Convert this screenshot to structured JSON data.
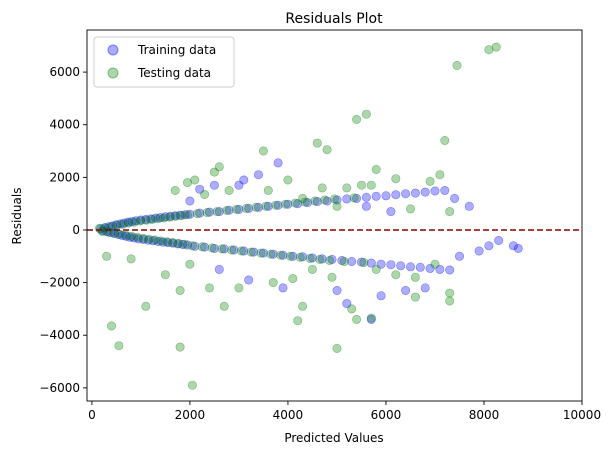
{
  "chart_data": {
    "type": "scatter",
    "title": "Residuals Plot",
    "xlabel": "Predicted Values",
    "ylabel": "Residuals",
    "xlim": [
      -100,
      10000
    ],
    "ylim": [
      -6500,
      7600
    ],
    "xticks": [
      0,
      2000,
      4000,
      6000,
      8000,
      10000
    ],
    "yticks": [
      -6000,
      -4000,
      -2000,
      0,
      2000,
      4000,
      6000
    ],
    "xtick_labels": [
      "0",
      "2000",
      "4000",
      "6000",
      "8000",
      "10000"
    ],
    "ytick_labels": [
      "−6000",
      "−4000",
      "−2000",
      "0",
      "2000",
      "4000",
      "6000"
    ],
    "grid": false,
    "legend_position": "upper-left",
    "reference_line": {
      "y": 0,
      "style": "dashed",
      "color": "#8b0000"
    },
    "series": [
      {
        "name": "Training data",
        "color": "#0000ff",
        "points": [
          [
            180,
            50
          ],
          [
            220,
            -40
          ],
          [
            260,
            80
          ],
          [
            300,
            -60
          ],
          [
            340,
            120
          ],
          [
            380,
            -100
          ],
          [
            420,
            150
          ],
          [
            460,
            -130
          ],
          [
            500,
            200
          ],
          [
            540,
            -170
          ],
          [
            580,
            230
          ],
          [
            620,
            -210
          ],
          [
            660,
            260
          ],
          [
            700,
            -240
          ],
          [
            740,
            300
          ],
          [
            780,
            -280
          ],
          [
            820,
            320
          ],
          [
            860,
            -300
          ],
          [
            900,
            350
          ],
          [
            950,
            -340
          ],
          [
            1000,
            380
          ],
          [
            1050,
            -360
          ],
          [
            1100,
            400
          ],
          [
            1150,
            -390
          ],
          [
            1200,
            420
          ],
          [
            1250,
            -410
          ],
          [
            1300,
            450
          ],
          [
            1350,
            -440
          ],
          [
            1400,
            470
          ],
          [
            1450,
            -460
          ],
          [
            1500,
            500
          ],
          [
            1550,
            -480
          ],
          [
            1600,
            520
          ],
          [
            1650,
            -500
          ],
          [
            1700,
            540
          ],
          [
            1750,
            -530
          ],
          [
            1800,
            560
          ],
          [
            1850,
            -550
          ],
          [
            1900,
            580
          ],
          [
            1950,
            -570
          ],
          [
            2000,
            600
          ],
          [
            2100,
            -620
          ],
          [
            2200,
            640
          ],
          [
            2300,
            -650
          ],
          [
            2400,
            680
          ],
          [
            2500,
            -700
          ],
          [
            2600,
            700
          ],
          [
            2700,
            -720
          ],
          [
            2800,
            750
          ],
          [
            2900,
            -760
          ],
          [
            3000,
            780
          ],
          [
            3100,
            -800
          ],
          [
            3200,
            820
          ],
          [
            3300,
            -840
          ],
          [
            3400,
            860
          ],
          [
            3500,
            -880
          ],
          [
            3600,
            900
          ],
          [
            3700,
            -920
          ],
          [
            3800,
            940
          ],
          [
            3900,
            -960
          ],
          [
            4000,
            980
          ],
          [
            4100,
            -1000
          ],
          [
            4200,
            1000
          ],
          [
            4300,
            -1020
          ],
          [
            4400,
            1040
          ],
          [
            4500,
            -1060
          ],
          [
            4600,
            1080
          ],
          [
            4700,
            -1100
          ],
          [
            4800,
            1100
          ],
          [
            4900,
            -1120
          ],
          [
            5000,
            1140
          ],
          [
            5100,
            -1160
          ],
          [
            5200,
            1180
          ],
          [
            5300,
            -1200
          ],
          [
            5400,
            1200
          ],
          [
            5500,
            -1220
          ],
          [
            5600,
            1240
          ],
          [
            5700,
            -1260
          ],
          [
            5800,
            1280
          ],
          [
            5900,
            -1300
          ],
          [
            6000,
            1300
          ],
          [
            6100,
            -1320
          ],
          [
            6200,
            1340
          ],
          [
            6300,
            -1360
          ],
          [
            6400,
            1380
          ],
          [
            6500,
            -1400
          ],
          [
            6600,
            1400
          ],
          [
            6700,
            -1420
          ],
          [
            6800,
            1440
          ],
          [
            6900,
            -1460
          ],
          [
            7000,
            1480
          ],
          [
            7100,
            -1500
          ],
          [
            7200,
            1500
          ],
          [
            7300,
            -1520
          ],
          [
            7400,
            1200
          ],
          [
            7500,
            -1000
          ],
          [
            7700,
            900
          ],
          [
            7900,
            -800
          ],
          [
            8100,
            -600
          ],
          [
            8300,
            -400
          ],
          [
            8600,
            -600
          ],
          [
            8700,
            -700
          ],
          [
            3800,
            2550
          ],
          [
            3400,
            2100
          ],
          [
            3100,
            1900
          ],
          [
            3000,
            1700
          ],
          [
            2500,
            1700
          ],
          [
            2200,
            1550
          ],
          [
            2000,
            1100
          ],
          [
            2600,
            -1500
          ],
          [
            3200,
            -1900
          ],
          [
            3900,
            -2200
          ],
          [
            5200,
            -2800
          ],
          [
            5700,
            -3400
          ],
          [
            5900,
            -2500
          ],
          [
            5000,
            -2300
          ],
          [
            6400,
            -2300
          ],
          [
            6800,
            -2200
          ],
          [
            5600,
            900
          ],
          [
            6100,
            700
          ]
        ]
      },
      {
        "name": "Testing data",
        "color": "#008000",
        "points": [
          [
            150,
            60
          ],
          [
            210,
            -50
          ],
          [
            270,
            90
          ],
          [
            330,
            -80
          ],
          [
            390,
            130
          ],
          [
            450,
            -120
          ],
          [
            510,
            180
          ],
          [
            570,
            -160
          ],
          [
            630,
            220
          ],
          [
            690,
            -200
          ],
          [
            750,
            260
          ],
          [
            810,
            -240
          ],
          [
            870,
            300
          ],
          [
            930,
            -280
          ],
          [
            990,
            340
          ],
          [
            1050,
            -320
          ],
          [
            1110,
            370
          ],
          [
            1170,
            -350
          ],
          [
            1230,
            400
          ],
          [
            1290,
            -380
          ],
          [
            1350,
            430
          ],
          [
            1410,
            -420
          ],
          [
            1470,
            460
          ],
          [
            1530,
            -450
          ],
          [
            1590,
            490
          ],
          [
            1650,
            -480
          ],
          [
            1710,
            520
          ],
          [
            1770,
            -510
          ],
          [
            1830,
            550
          ],
          [
            1890,
            -540
          ],
          [
            1950,
            580
          ],
          [
            2050,
            -600
          ],
          [
            2150,
            620
          ],
          [
            2250,
            -640
          ],
          [
            2350,
            660
          ],
          [
            2450,
            -680
          ],
          [
            2550,
            700
          ],
          [
            2650,
            -720
          ],
          [
            2750,
            740
          ],
          [
            2850,
            -760
          ],
          [
            2950,
            780
          ],
          [
            3050,
            -800
          ],
          [
            3150,
            820
          ],
          [
            3250,
            -840
          ],
          [
            3350,
            860
          ],
          [
            3450,
            -880
          ],
          [
            3550,
            900
          ],
          [
            3650,
            -920
          ],
          [
            3750,
            940
          ],
          [
            3850,
            -960
          ],
          [
            3950,
            980
          ],
          [
            4050,
            -1000
          ],
          [
            4150,
            1020
          ],
          [
            4250,
            -1040
          ],
          [
            4350,
            1060
          ],
          [
            4450,
            -1080
          ],
          [
            4550,
            1100
          ],
          [
            4650,
            -1120
          ],
          [
            4750,
            1140
          ],
          [
            4850,
            -1160
          ],
          [
            4950,
            1180
          ],
          [
            5150,
            -1200
          ],
          [
            5350,
            1220
          ],
          [
            5550,
            -1240
          ],
          [
            8250,
            6950
          ],
          [
            8100,
            6850
          ],
          [
            7450,
            6250
          ],
          [
            5600,
            4400
          ],
          [
            5400,
            4200
          ],
          [
            7200,
            3400
          ],
          [
            4800,
            3050
          ],
          [
            4600,
            3300
          ],
          [
            3500,
            3000
          ],
          [
            5800,
            2300
          ],
          [
            7100,
            2100
          ],
          [
            6900,
            1850
          ],
          [
            6200,
            1950
          ],
          [
            5500,
            1700
          ],
          [
            5700,
            1700
          ],
          [
            4700,
            1600
          ],
          [
            5200,
            1600
          ],
          [
            2600,
            2400
          ],
          [
            2500,
            2200
          ],
          [
            2100,
            1900
          ],
          [
            1950,
            1800
          ],
          [
            1700,
            1500
          ],
          [
            2300,
            1350
          ],
          [
            2800,
            1500
          ],
          [
            4000,
            1900
          ],
          [
            3600,
            1500
          ],
          [
            4300,
            1200
          ],
          [
            6500,
            800
          ],
          [
            7300,
            700
          ],
          [
            5000,
            900
          ],
          [
            2050,
            -5900
          ],
          [
            1800,
            -4450
          ],
          [
            550,
            -4400
          ],
          [
            400,
            -3650
          ],
          [
            5000,
            -4500
          ],
          [
            4200,
            -3450
          ],
          [
            5400,
            -3400
          ],
          [
            5700,
            -3350
          ],
          [
            4300,
            -2900
          ],
          [
            5300,
            -3000
          ],
          [
            1100,
            -2900
          ],
          [
            7300,
            -2700
          ],
          [
            7300,
            -2400
          ],
          [
            6600,
            -2550
          ],
          [
            2700,
            -2900
          ],
          [
            1800,
            -2300
          ],
          [
            2400,
            -2200
          ],
          [
            3000,
            -2200
          ],
          [
            3700,
            -2000
          ],
          [
            4100,
            -1850
          ],
          [
            4500,
            -1500
          ],
          [
            6200,
            -1700
          ],
          [
            6600,
            -1800
          ],
          [
            7000,
            -1300
          ],
          [
            5800,
            -1500
          ],
          [
            4900,
            -1800
          ],
          [
            1500,
            -1700
          ],
          [
            2000,
            -1300
          ],
          [
            300,
            -1000
          ],
          [
            800,
            -1100
          ]
        ]
      }
    ]
  }
}
